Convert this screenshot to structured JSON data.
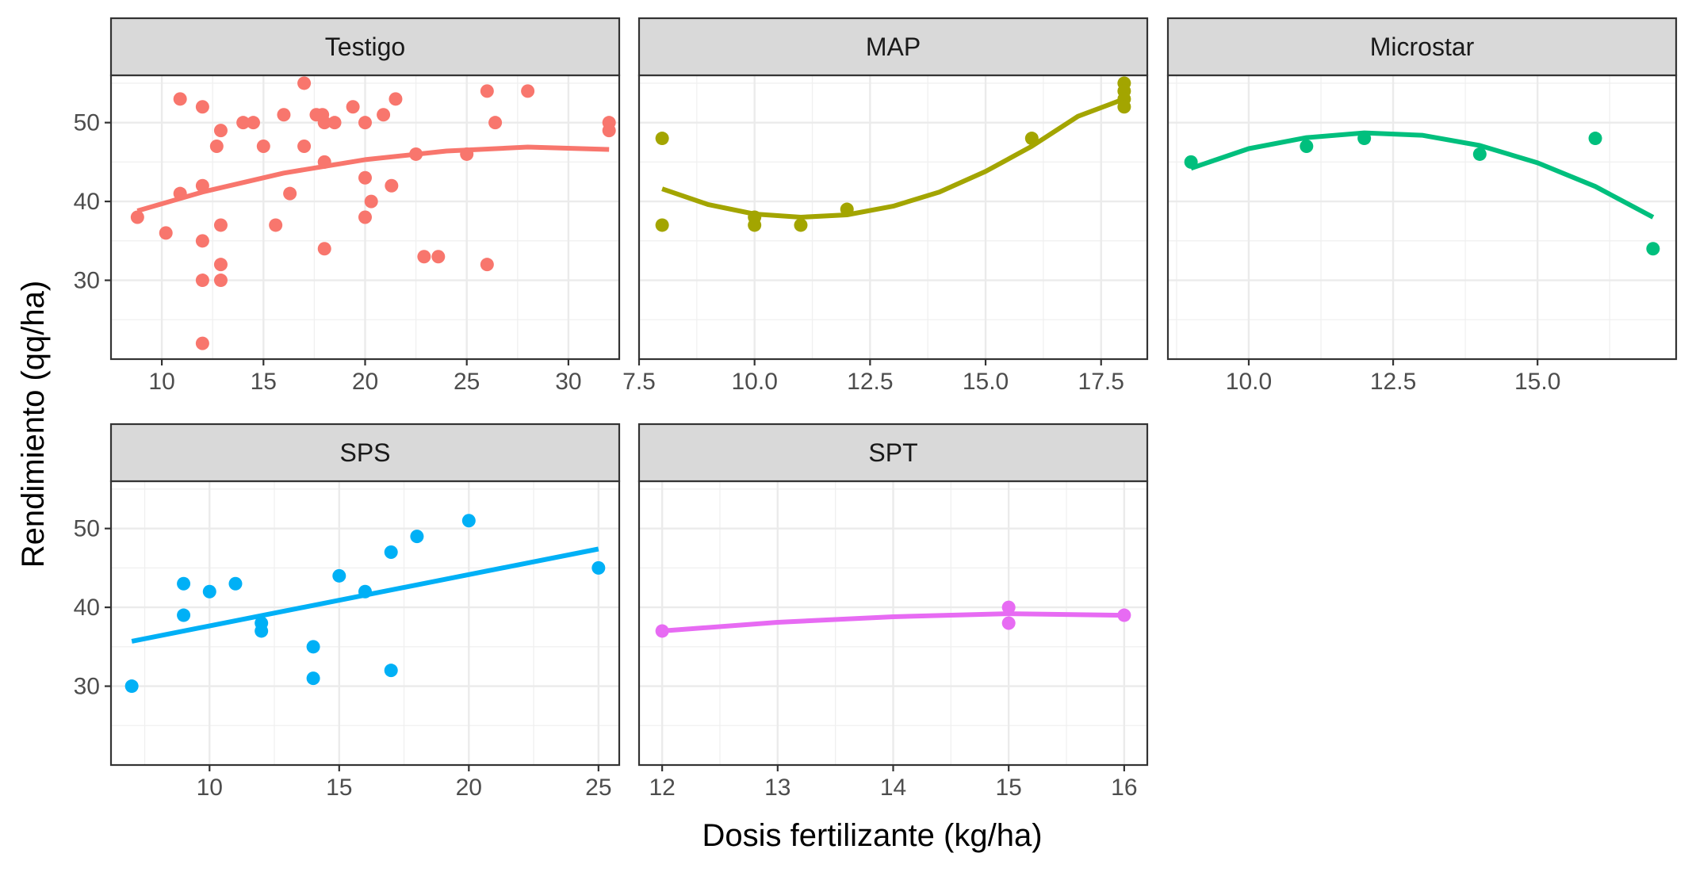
{
  "chart_data": {
    "type": "scatter",
    "xlabel": "Dosis  fertilizante (kg/ha)",
    "ylabel": "Rendimiento (qq/ha)",
    "ylim": [
      20,
      56
    ],
    "yticks": [
      30,
      40,
      50
    ],
    "grid": true,
    "legend": "none",
    "facets": [
      {
        "name": "Testigo",
        "color": "#F8766D",
        "xlim": [
          7.5,
          32.5
        ],
        "xticks": [
          10,
          15,
          20,
          25,
          30
        ],
        "xtick_labels": [
          "10",
          "15",
          "20",
          "25",
          "30"
        ],
        "points": [
          [
            8.8,
            38
          ],
          [
            10.2,
            36
          ],
          [
            10.9,
            41
          ],
          [
            10.9,
            53
          ],
          [
            12,
            52
          ],
          [
            12,
            42
          ],
          [
            12,
            35
          ],
          [
            12,
            30
          ],
          [
            12,
            22
          ],
          [
            12.7,
            47
          ],
          [
            12.9,
            49
          ],
          [
            12.9,
            37
          ],
          [
            12.9,
            32
          ],
          [
            12.9,
            30
          ],
          [
            14,
            50
          ],
          [
            14.5,
            50
          ],
          [
            15,
            47
          ],
          [
            15.6,
            37
          ],
          [
            16,
            51
          ],
          [
            16.3,
            41
          ],
          [
            17,
            55
          ],
          [
            17,
            47
          ],
          [
            17.6,
            51
          ],
          [
            17.9,
            51
          ],
          [
            18,
            50
          ],
          [
            18,
            45
          ],
          [
            18,
            34
          ],
          [
            18.5,
            50
          ],
          [
            19.4,
            52
          ],
          [
            20,
            50
          ],
          [
            20,
            43
          ],
          [
            20,
            38
          ],
          [
            20.3,
            40
          ],
          [
            20.9,
            51
          ],
          [
            21.3,
            42
          ],
          [
            21.5,
            53
          ],
          [
            22.5,
            46
          ],
          [
            22.9,
            33
          ],
          [
            23.6,
            33
          ],
          [
            25,
            46
          ],
          [
            26,
            54
          ],
          [
            26,
            32
          ],
          [
            26.4,
            50
          ],
          [
            28,
            54
          ],
          [
            32,
            50
          ],
          [
            32,
            49
          ]
        ],
        "fit": [
          [
            8.8,
            38.8
          ],
          [
            12,
            41.2
          ],
          [
            16,
            43.6
          ],
          [
            20,
            45.3
          ],
          [
            24,
            46.4
          ],
          [
            28,
            46.9
          ],
          [
            32,
            46.6
          ]
        ]
      },
      {
        "name": "MAP",
        "color": "#A3A500",
        "xlim": [
          7.5,
          18.5
        ],
        "xticks": [
          7.5,
          10,
          12.5,
          15,
          17.5
        ],
        "xtick_labels": [
          "7.5",
          "10.0",
          "12.5",
          "15.0",
          "17.5"
        ],
        "points": [
          [
            8,
            48
          ],
          [
            8,
            37
          ],
          [
            10,
            38
          ],
          [
            10,
            37
          ],
          [
            11,
            37
          ],
          [
            12,
            39
          ],
          [
            16,
            48
          ],
          [
            18,
            55
          ],
          [
            18,
            54
          ],
          [
            18,
            53
          ],
          [
            18,
            52
          ]
        ],
        "fit": [
          [
            8,
            41.6
          ],
          [
            9,
            39.6
          ],
          [
            10,
            38.4
          ],
          [
            11,
            38
          ],
          [
            12,
            38.3
          ],
          [
            13,
            39.4
          ],
          [
            14,
            41.2
          ],
          [
            15,
            43.8
          ],
          [
            16,
            47
          ],
          [
            17,
            50.8
          ],
          [
            18,
            53
          ]
        ]
      },
      {
        "name": "Microstar",
        "color": "#00BF7D",
        "xlim": [
          8.6,
          17.4
        ],
        "xticks": [
          10,
          12.5,
          15
        ],
        "xtick_labels": [
          "10.0",
          "12.5",
          "15.0"
        ],
        "points": [
          [
            9,
            45
          ],
          [
            11,
            47
          ],
          [
            12,
            48
          ],
          [
            14,
            46
          ],
          [
            16,
            48
          ],
          [
            17,
            34
          ]
        ],
        "fit": [
          [
            9,
            44.2
          ],
          [
            10,
            46.7
          ],
          [
            11,
            48.1
          ],
          [
            12,
            48.7
          ],
          [
            13,
            48.4
          ],
          [
            14,
            47.1
          ],
          [
            15,
            44.9
          ],
          [
            16,
            41.9
          ],
          [
            17,
            38
          ]
        ]
      },
      {
        "name": "SPS",
        "color": "#00B0F6",
        "xlim": [
          6.2,
          25.8
        ],
        "xticks": [
          10,
          15,
          20,
          25
        ],
        "xtick_labels": [
          "10",
          "15",
          "20",
          "25"
        ],
        "points": [
          [
            7,
            30
          ],
          [
            9,
            43
          ],
          [
            9,
            39
          ],
          [
            10,
            42
          ],
          [
            11,
            43
          ],
          [
            12,
            38
          ],
          [
            12,
            37
          ],
          [
            14,
            35
          ],
          [
            14,
            31
          ],
          [
            15,
            44
          ],
          [
            16,
            42
          ],
          [
            17,
            47
          ],
          [
            17,
            32
          ],
          [
            18,
            49
          ],
          [
            20,
            51
          ],
          [
            25,
            45
          ]
        ],
        "fit": [
          [
            7,
            35.7
          ],
          [
            25,
            47.4
          ]
        ]
      },
      {
        "name": "SPT",
        "color": "#E76BF3",
        "xlim": [
          11.8,
          16.2
        ],
        "xticks": [
          12,
          13,
          14,
          15,
          16
        ],
        "xtick_labels": [
          "12",
          "13",
          "14",
          "15",
          "16"
        ],
        "points": [
          [
            12,
            37
          ],
          [
            15,
            40
          ],
          [
            15,
            38
          ],
          [
            16,
            39
          ]
        ],
        "fit": [
          [
            12,
            37
          ],
          [
            13,
            38.1
          ],
          [
            14,
            38.8
          ],
          [
            15,
            39.2
          ],
          [
            16,
            39
          ]
        ]
      }
    ]
  }
}
